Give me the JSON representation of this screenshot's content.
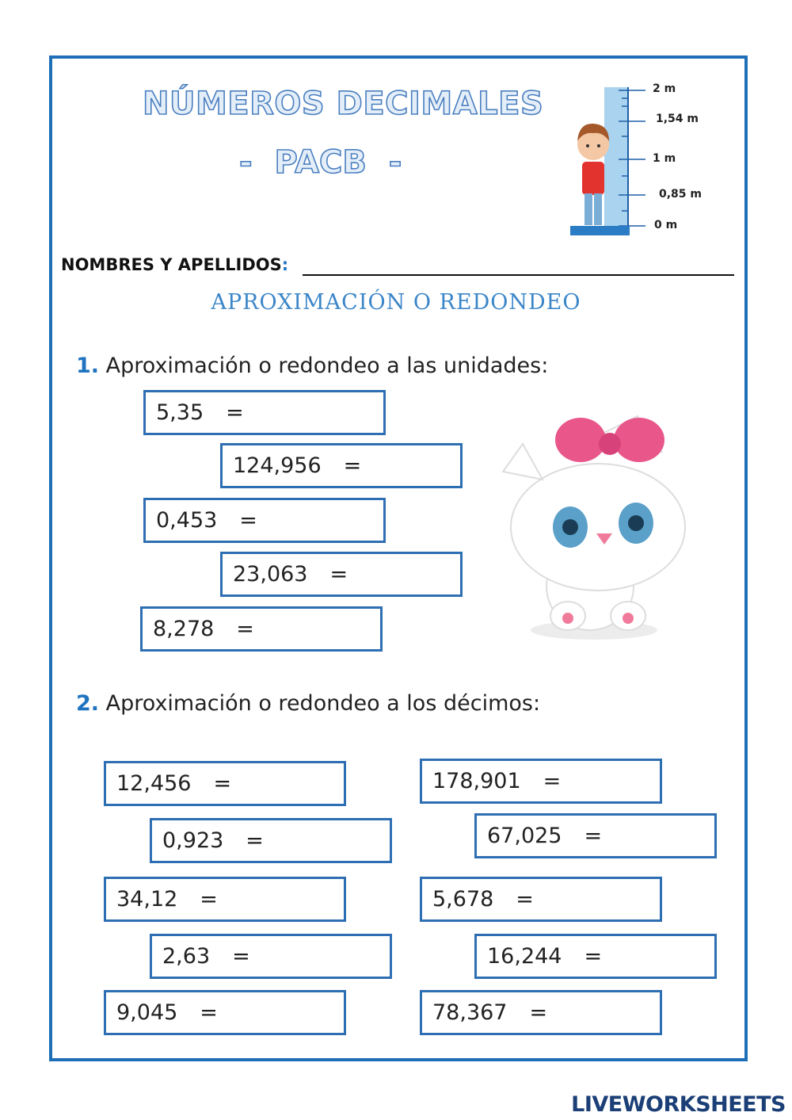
{
  "header": {
    "title": "NÚMEROS DECIMALES",
    "subtitle": "-  PACB  -"
  },
  "ruler": {
    "labels": [
      "2 m",
      "1,54 m",
      "1 m",
      "0,85 m",
      "0 m"
    ]
  },
  "name_field": {
    "label": "NOMBRES Y APELLIDOS",
    "separator": ":"
  },
  "section_title": "APROXIMACIÓN O REDONDEO",
  "exercises": [
    {
      "number": "1.",
      "text": "Aproximación o redondeo a las unidades:",
      "items": [
        {
          "value": "5,35",
          "sign": "="
        },
        {
          "value": "124,956",
          "sign": "="
        },
        {
          "value": "0,453",
          "sign": "="
        },
        {
          "value": "23,063",
          "sign": "="
        },
        {
          "value": "8,278",
          "sign": "="
        }
      ]
    },
    {
      "number": "2.",
      "text": "Aproximación o redondeo a los décimos:",
      "items": [
        {
          "value": "12,456",
          "sign": "="
        },
        {
          "value": "0,923",
          "sign": "="
        },
        {
          "value": "34,12",
          "sign": "="
        },
        {
          "value": "2,63",
          "sign": "="
        },
        {
          "value": "9,045",
          "sign": "="
        },
        {
          "value": "178,901",
          "sign": "="
        },
        {
          "value": "67,025",
          "sign": "="
        },
        {
          "value": "5,678",
          "sign": "="
        },
        {
          "value": "16,244",
          "sign": "="
        },
        {
          "value": "78,367",
          "sign": "="
        }
      ]
    }
  ],
  "footer": {
    "brand": "LIVEWORKSHEETS"
  }
}
